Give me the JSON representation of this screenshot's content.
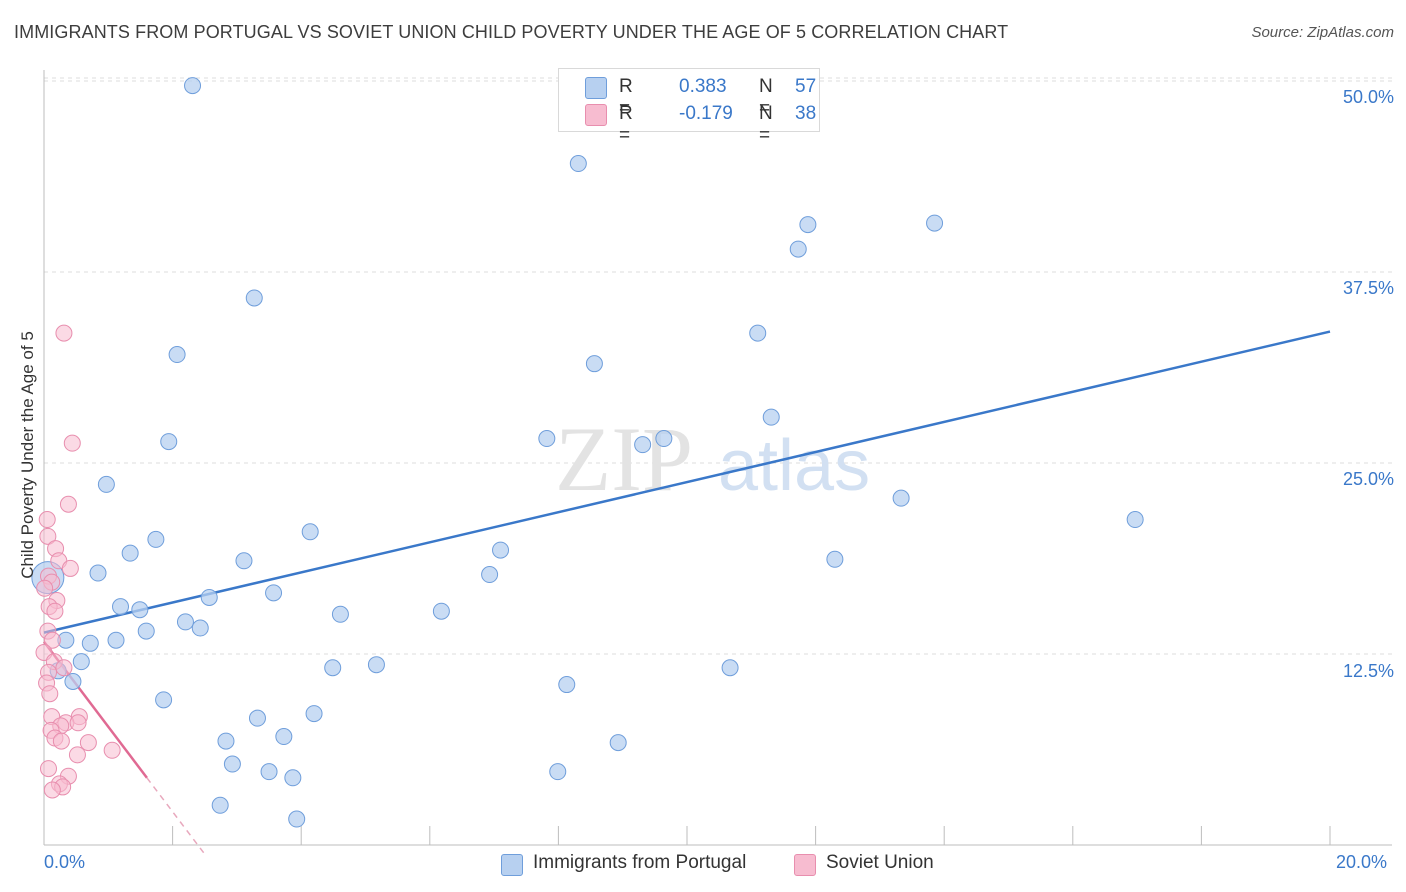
{
  "title": "IMMIGRANTS FROM PORTUGAL VS SOVIET UNION CHILD POVERTY UNDER THE AGE OF 5 CORRELATION CHART",
  "source": "Source: ZipAtlas.com",
  "watermark": {
    "zip": "ZIP",
    "atlas": "atlas"
  },
  "legend": {
    "rows": [
      {
        "r_label": "R =",
        "r_value": "0.383",
        "n_label": "N =",
        "n_value": "57"
      },
      {
        "r_label": "R =",
        "r_value": "-0.179",
        "n_label": "N =",
        "n_value": "38"
      }
    ]
  },
  "chart_data": {
    "type": "scatter",
    "title": "IMMIGRANTS FROM PORTUGAL VS SOVIET UNION CHILD POVERTY UNDER THE AGE OF 5 CORRELATION CHART",
    "xlabel": "",
    "ylabel": "Child Poverty Under the Age of 5",
    "xlim": [
      0,
      20
    ],
    "ylim": [
      0,
      51
    ],
    "x_tick_labels": [
      "0.0%",
      "20.0%"
    ],
    "y_tick_values": [
      12.5,
      25.0,
      37.5,
      50.0
    ],
    "y_tick_labels": [
      "12.5%",
      "25.0%",
      "37.5%",
      "50.0%"
    ],
    "grid": true,
    "colors": {
      "blue": "#3a78c9",
      "blue_fill": "#b7d0f0",
      "pink": "#e06a93",
      "pink_fill": "#f7bcd0"
    },
    "series": [
      {
        "name": "Immigrants from Portugal",
        "color": "#3a78c9",
        "fill": "#b7d0f0",
        "trend": {
          "x": [
            0,
            20
          ],
          "y": [
            13.9,
            33.6
          ]
        },
        "points": [
          {
            "x": 2.31,
            "y": 49.7
          },
          {
            "x": 8.31,
            "y": 44.6
          },
          {
            "x": 11.88,
            "y": 40.6
          },
          {
            "x": 13.85,
            "y": 40.7
          },
          {
            "x": 11.73,
            "y": 39.0
          },
          {
            "x": 3.27,
            "y": 35.8
          },
          {
            "x": 11.1,
            "y": 33.5
          },
          {
            "x": 2.07,
            "y": 32.1
          },
          {
            "x": 8.56,
            "y": 31.5
          },
          {
            "x": 11.31,
            "y": 28.0
          },
          {
            "x": 7.82,
            "y": 26.6
          },
          {
            "x": 9.31,
            "y": 26.2
          },
          {
            "x": 1.94,
            "y": 26.4
          },
          {
            "x": 9.64,
            "y": 26.6
          },
          {
            "x": 0.97,
            "y": 23.6
          },
          {
            "x": 13.33,
            "y": 22.7
          },
          {
            "x": 16.97,
            "y": 21.3
          },
          {
            "x": 4.14,
            "y": 20.5
          },
          {
            "x": 1.74,
            "y": 20.0
          },
          {
            "x": 7.1,
            "y": 19.3
          },
          {
            "x": 1.34,
            "y": 19.1
          },
          {
            "x": 3.11,
            "y": 18.6
          },
          {
            "x": 12.3,
            "y": 18.7
          },
          {
            "x": 0.84,
            "y": 17.8
          },
          {
            "x": 6.93,
            "y": 17.7
          },
          {
            "x": 2.57,
            "y": 16.2
          },
          {
            "x": 3.57,
            "y": 16.5
          },
          {
            "x": 1.19,
            "y": 15.6
          },
          {
            "x": 1.49,
            "y": 15.4
          },
          {
            "x": 6.18,
            "y": 15.3
          },
          {
            "x": 4.61,
            "y": 15.1
          },
          {
            "x": 2.2,
            "y": 14.6
          },
          {
            "x": 2.43,
            "y": 14.2
          },
          {
            "x": 1.59,
            "y": 14.0
          },
          {
            "x": 0.34,
            "y": 13.4
          },
          {
            "x": 1.12,
            "y": 13.4
          },
          {
            "x": 0.72,
            "y": 13.2
          },
          {
            "x": 0.58,
            "y": 12.0
          },
          {
            "x": 4.49,
            "y": 11.6
          },
          {
            "x": 5.17,
            "y": 11.8
          },
          {
            "x": 10.67,
            "y": 11.6
          },
          {
            "x": 0.22,
            "y": 11.4
          },
          {
            "x": 0.45,
            "y": 10.7
          },
          {
            "x": 8.13,
            "y": 10.5
          },
          {
            "x": 1.86,
            "y": 9.5
          },
          {
            "x": 4.2,
            "y": 8.6
          },
          {
            "x": 3.32,
            "y": 8.3
          },
          {
            "x": 3.73,
            "y": 7.1
          },
          {
            "x": 2.83,
            "y": 6.8
          },
          {
            "x": 8.93,
            "y": 6.7
          },
          {
            "x": 2.93,
            "y": 5.3
          },
          {
            "x": 3.5,
            "y": 4.8
          },
          {
            "x": 7.99,
            "y": 4.8
          },
          {
            "x": 3.87,
            "y": 4.4
          },
          {
            "x": 2.74,
            "y": 2.6
          },
          {
            "x": 3.93,
            "y": 1.7
          },
          {
            "x": 0.06,
            "y": 17.5
          }
        ]
      },
      {
        "name": "Soviet Union",
        "color": "#e06a93",
        "fill": "#f7bcd0",
        "trend": {
          "x": [
            0,
            1.6
          ],
          "y": [
            13.3,
            4.4
          ],
          "dashed_to": {
            "x": 2.5,
            "y": -0.6
          }
        },
        "points": [
          {
            "x": 0.31,
            "y": 33.5
          },
          {
            "x": 0.44,
            "y": 26.3
          },
          {
            "x": 0.38,
            "y": 22.3
          },
          {
            "x": 0.05,
            "y": 21.3
          },
          {
            "x": 0.06,
            "y": 20.2
          },
          {
            "x": 0.18,
            "y": 19.4
          },
          {
            "x": 0.23,
            "y": 18.6
          },
          {
            "x": 0.41,
            "y": 18.1
          },
          {
            "x": 0.07,
            "y": 17.6
          },
          {
            "x": 0.12,
            "y": 17.2
          },
          {
            "x": 0.01,
            "y": 16.8
          },
          {
            "x": 0.2,
            "y": 16.0
          },
          {
            "x": 0.08,
            "y": 15.6
          },
          {
            "x": 0.17,
            "y": 15.3
          },
          {
            "x": 0.06,
            "y": 14.0
          },
          {
            "x": 0.13,
            "y": 13.4
          },
          {
            "x": 0.0,
            "y": 12.6
          },
          {
            "x": 0.16,
            "y": 12.0
          },
          {
            "x": 0.31,
            "y": 11.6
          },
          {
            "x": 0.07,
            "y": 11.3
          },
          {
            "x": 0.04,
            "y": 10.6
          },
          {
            "x": 0.09,
            "y": 9.9
          },
          {
            "x": 0.12,
            "y": 8.4
          },
          {
            "x": 0.55,
            "y": 8.4
          },
          {
            "x": 0.34,
            "y": 8.0
          },
          {
            "x": 0.53,
            "y": 8.0
          },
          {
            "x": 0.26,
            "y": 7.8
          },
          {
            "x": 0.11,
            "y": 7.5
          },
          {
            "x": 0.17,
            "y": 7.0
          },
          {
            "x": 0.27,
            "y": 6.8
          },
          {
            "x": 0.69,
            "y": 6.7
          },
          {
            "x": 1.06,
            "y": 6.2
          },
          {
            "x": 0.52,
            "y": 5.9
          },
          {
            "x": 0.07,
            "y": 5.0
          },
          {
            "x": 0.38,
            "y": 4.5
          },
          {
            "x": 0.24,
            "y": 4.0
          },
          {
            "x": 0.29,
            "y": 3.8
          },
          {
            "x": 0.13,
            "y": 3.6
          }
        ]
      }
    ]
  }
}
